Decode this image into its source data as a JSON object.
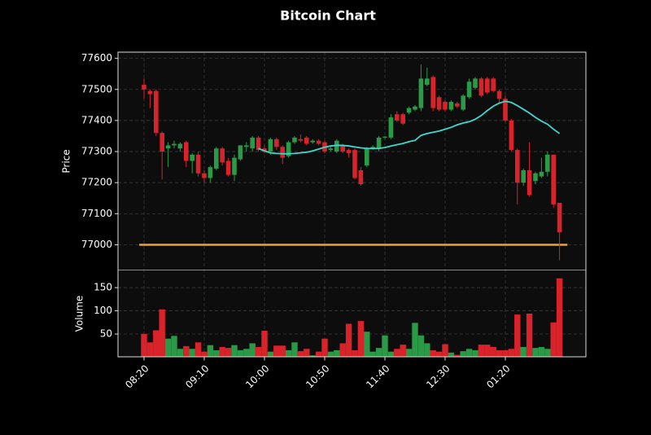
{
  "chart_data": {
    "type": "candlestick",
    "title": "Bitcoin Chart",
    "ylabel": "Price",
    "y2label": "Volume",
    "categories": [
      "08:20",
      null,
      null,
      null,
      null,
      null,
      null,
      null,
      null,
      null,
      "09:10",
      null,
      null,
      null,
      null,
      null,
      null,
      null,
      null,
      null,
      "10:00",
      null,
      null,
      null,
      null,
      null,
      null,
      null,
      null,
      null,
      "10:50",
      null,
      null,
      null,
      null,
      null,
      null,
      null,
      null,
      null,
      "11:40",
      null,
      null,
      null,
      null,
      null,
      null,
      null,
      null,
      null,
      "12:30",
      null,
      null,
      null,
      null,
      null,
      null,
      null,
      null,
      null,
      "01:20",
      null,
      null,
      null,
      null,
      null,
      null,
      null,
      null,
      null
    ],
    "open": [
      77515,
      77495,
      77495,
      77360,
      77310,
      77320,
      77310,
      77330,
      77270,
      77290,
      77230,
      77215,
      77245,
      77310,
      77270,
      77225,
      77275,
      77315,
      77310,
      77345,
      77310,
      77300,
      77340,
      77315,
      77285,
      77330,
      77340,
      77345,
      77330,
      77335,
      77330,
      77305,
      77300,
      77320,
      77305,
      77305,
      77240,
      77255,
      77310,
      77310,
      77345,
      77345,
      77420,
      77420,
      77425,
      77435,
      77440,
      77515,
      77540,
      77475,
      77460,
      77435,
      77455,
      77435,
      77475,
      77505,
      77535,
      77535,
      77535,
      77495,
      77470,
      77400,
      77305,
      77200,
      77240,
      77205,
      77220,
      77235,
      77290,
      77135
    ],
    "high": [
      77535,
      77500,
      77500,
      77365,
      77330,
      77335,
      77330,
      77335,
      77295,
      77300,
      77240,
      77255,
      77315,
      77315,
      77280,
      77290,
      77320,
      77330,
      77350,
      77350,
      77320,
      77345,
      77345,
      77320,
      77335,
      77350,
      77355,
      77350,
      77340,
      77340,
      77335,
      77315,
      77340,
      77325,
      77310,
      77310,
      77250,
      77315,
      77320,
      77350,
      77350,
      77420,
      77430,
      77425,
      77445,
      77450,
      77580,
      77570,
      77545,
      77480,
      77465,
      77465,
      77460,
      77485,
      77535,
      77540,
      77540,
      77540,
      77540,
      77500,
      77480,
      77405,
      77310,
      77245,
      77330,
      77235,
      77280,
      77300,
      77290,
      77135
    ],
    "low": [
      77470,
      77440,
      77350,
      77210,
      77250,
      77310,
      77300,
      77250,
      77230,
      77220,
      77200,
      77200,
      77240,
      77255,
      77220,
      77205,
      77270,
      77300,
      77300,
      77300,
      77295,
      77290,
      77305,
      77260,
      77280,
      77325,
      77330,
      77320,
      77325,
      77320,
      77295,
      77300,
      77295,
      77295,
      77280,
      77210,
      77190,
      77250,
      77305,
      77300,
      77340,
      77340,
      77395,
      77385,
      77420,
      77430,
      77430,
      77510,
      77430,
      77430,
      77430,
      77430,
      77440,
      77430,
      77470,
      77500,
      77475,
      77485,
      77490,
      77455,
      77395,
      77300,
      77130,
      77190,
      77155,
      77195,
      77215,
      77220,
      77120,
      76950
    ],
    "close": [
      77500,
      77485,
      77360,
      77300,
      77320,
      77325,
      77325,
      77270,
      77290,
      77230,
      77215,
      77250,
      77310,
      77265,
      77225,
      77280,
      77320,
      77320,
      77345,
      77305,
      77300,
      77340,
      77315,
      77280,
      77330,
      77345,
      77335,
      77325,
      77335,
      77325,
      77300,
      77310,
      77335,
      77300,
      77295,
      77215,
      77195,
      77310,
      77315,
      77345,
      77348,
      77410,
      77400,
      77390,
      77440,
      77445,
      77535,
      77535,
      77440,
      77435,
      77435,
      77460,
      77445,
      77480,
      77525,
      77535,
      77480,
      77490,
      77495,
      77470,
      77400,
      77305,
      77200,
      77240,
      77160,
      77230,
      77235,
      77290,
      77130,
      77040
    ],
    "volume": [
      50,
      32,
      58,
      103,
      40,
      46,
      18,
      24,
      18,
      32,
      12,
      26,
      15,
      22,
      20,
      26,
      15,
      18,
      30,
      22,
      57,
      12,
      25,
      25,
      15,
      32,
      13,
      18,
      4,
      12,
      40,
      12,
      15,
      30,
      72,
      15,
      78,
      55,
      12,
      20,
      47,
      12,
      18,
      27,
      18,
      74,
      47,
      30,
      15,
      12,
      28,
      10,
      5,
      13,
      18,
      15,
      27,
      27,
      22,
      15,
      15,
      18,
      92,
      22,
      94,
      20,
      22,
      18,
      75,
      170
    ],
    "moving_average": {
      "color": "#40d8cc",
      "values": [
        null,
        null,
        null,
        null,
        null,
        null,
        null,
        null,
        null,
        null,
        null,
        null,
        null,
        null,
        null,
        null,
        null,
        null,
        null,
        77310,
        77302,
        77296,
        77294,
        77293,
        77293,
        77294,
        77296,
        77298,
        77302,
        77308,
        77314,
        77318,
        77320,
        77320,
        77318,
        77315,
        77312,
        77310,
        77310,
        77310,
        77313,
        77318,
        77322,
        77326,
        77332,
        77336,
        77352,
        77358,
        77362,
        77366,
        77372,
        77378,
        77386,
        77392,
        77396,
        77404,
        77416,
        77432,
        77446,
        77456,
        77462,
        77458,
        77448,
        77436,
        77424,
        77410,
        77398,
        77388,
        77372,
        77358
      ]
    },
    "hline": {
      "value": 77000,
      "color": "#f5a033"
    },
    "up_color": "#2a9a46",
    "down_color": "#d9232b",
    "ylim": [
      76920,
      77620
    ],
    "yticks": [
      77000,
      77100,
      77200,
      77300,
      77400,
      77500,
      77600
    ],
    "y2lim": [
      0,
      187
    ],
    "y2ticks": [
      50,
      100,
      150
    ],
    "grid": true
  }
}
